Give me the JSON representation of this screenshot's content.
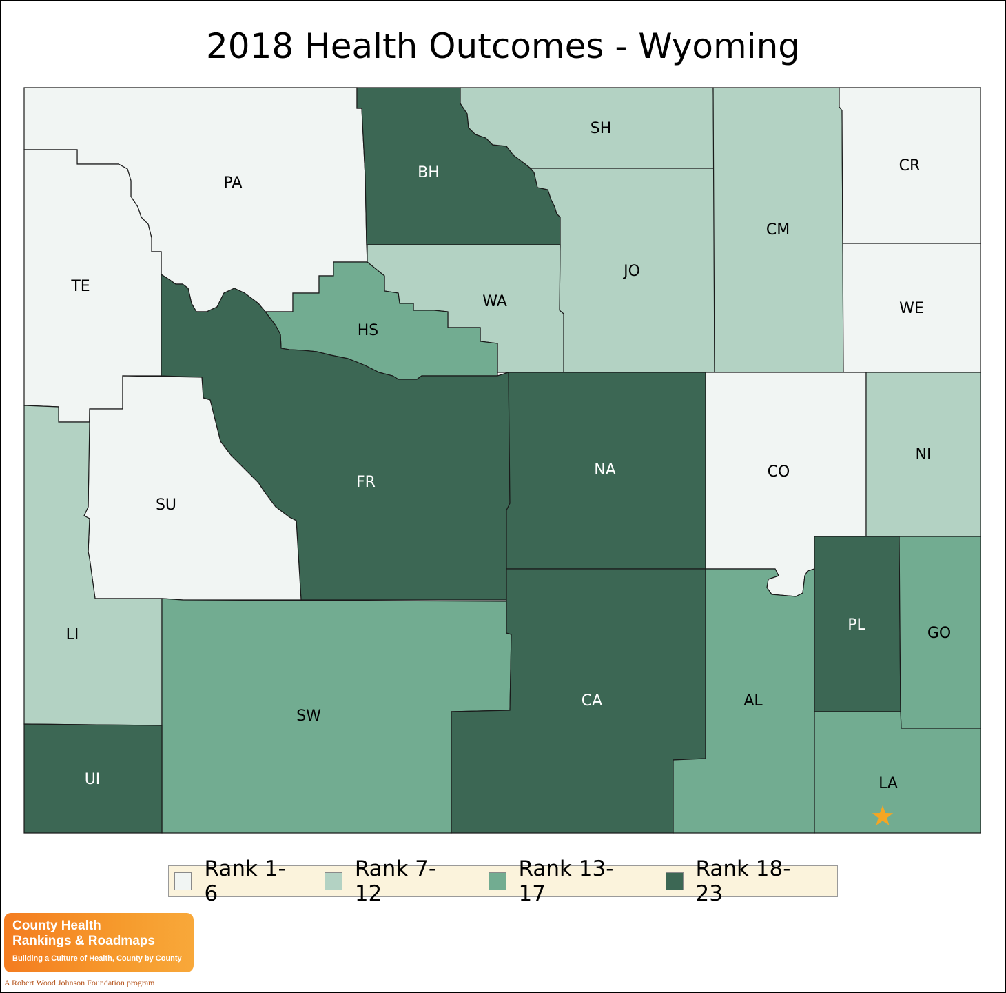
{
  "title": "2018 Health Outcomes - Wyoming",
  "colors": {
    "rank_1_6": "#f1f5f3",
    "rank_7_12": "#b3d2c3",
    "rank_13_17": "#72ac91",
    "rank_18_23": "#3c6754",
    "marker": "#f5a623"
  },
  "legend": {
    "items": [
      {
        "label": "Rank 1-6",
        "tier": "rank_1_6"
      },
      {
        "label": "Rank 7-12",
        "tier": "rank_7_12"
      },
      {
        "label": "Rank 13-17",
        "tier": "rank_13_17"
      },
      {
        "label": "Rank 18-23",
        "tier": "rank_18_23"
      }
    ]
  },
  "counties": [
    {
      "abbr": "PA",
      "tier": "rank_1_6"
    },
    {
      "abbr": "BH",
      "tier": "rank_18_23"
    },
    {
      "abbr": "SH",
      "tier": "rank_7_12"
    },
    {
      "abbr": "CM",
      "tier": "rank_7_12"
    },
    {
      "abbr": "CR",
      "tier": "rank_1_6"
    },
    {
      "abbr": "TE",
      "tier": "rank_1_6"
    },
    {
      "abbr": "JO",
      "tier": "rank_7_12"
    },
    {
      "abbr": "WA",
      "tier": "rank_7_12"
    },
    {
      "abbr": "HS",
      "tier": "rank_13_17"
    },
    {
      "abbr": "WE",
      "tier": "rank_1_6"
    },
    {
      "abbr": "FR",
      "tier": "rank_18_23"
    },
    {
      "abbr": "SU",
      "tier": "rank_1_6"
    },
    {
      "abbr": "NA",
      "tier": "rank_18_23"
    },
    {
      "abbr": "CO",
      "tier": "rank_1_6"
    },
    {
      "abbr": "NI",
      "tier": "rank_7_12"
    },
    {
      "abbr": "LI",
      "tier": "rank_7_12"
    },
    {
      "abbr": "SW",
      "tier": "rank_13_17"
    },
    {
      "abbr": "CA",
      "tier": "rank_18_23"
    },
    {
      "abbr": "AL",
      "tier": "rank_13_17"
    },
    {
      "abbr": "PL",
      "tier": "rank_18_23"
    },
    {
      "abbr": "GO",
      "tier": "rank_13_17"
    },
    {
      "abbr": "UI",
      "tier": "rank_18_23"
    },
    {
      "abbr": "LA",
      "tier": "rank_13_17"
    }
  ],
  "marker": {
    "county": "LA",
    "icon": "star-icon"
  },
  "logo": {
    "line1": "County Health",
    "line2": "Rankings & Roadmaps",
    "line3": "Building a Culture of Health, County by County",
    "foundation": "A Robert Wood Johnson Foundation program"
  }
}
